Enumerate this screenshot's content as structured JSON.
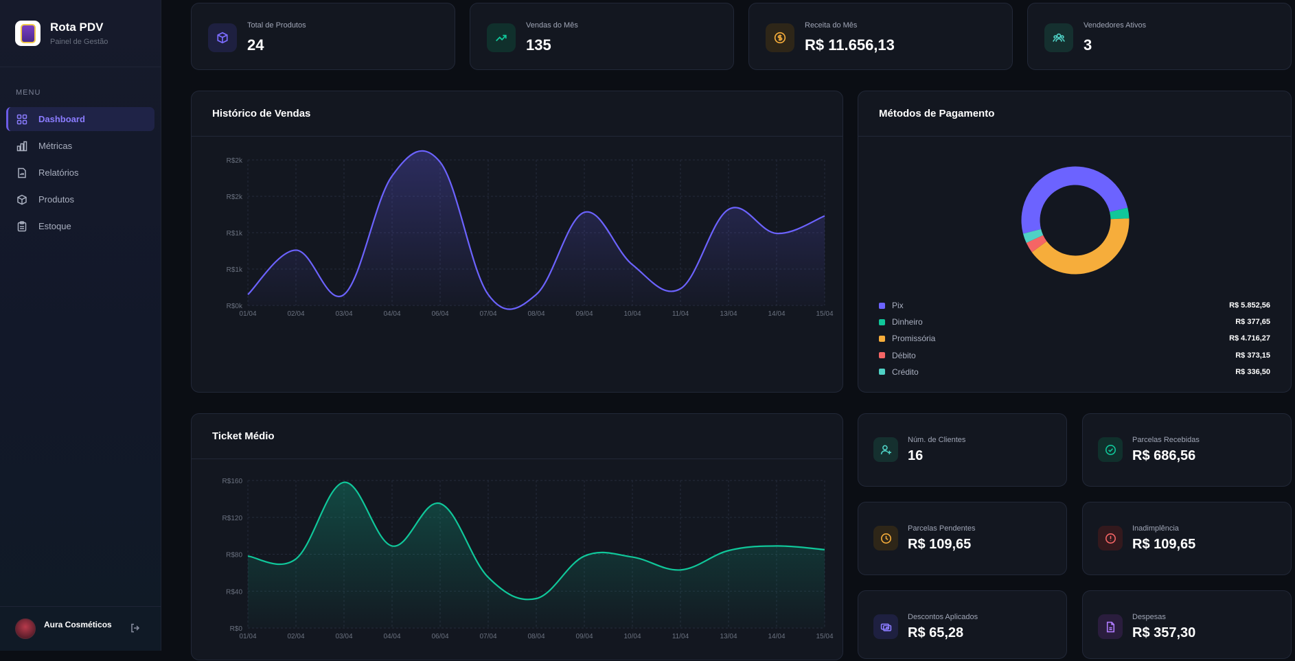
{
  "brand": {
    "title": "Rota PDV",
    "subtitle": "Painel de Gestão"
  },
  "menu_label": "MENU",
  "nav": [
    {
      "label": "Dashboard",
      "icon": "grid-icon",
      "active": true
    },
    {
      "label": "Métricas",
      "icon": "bar-chart-icon",
      "active": false
    },
    {
      "label": "Relatórios",
      "icon": "report-icon",
      "active": false
    },
    {
      "label": "Produtos",
      "icon": "box-icon",
      "active": false
    },
    {
      "label": "Estoque",
      "icon": "clipboard-icon",
      "active": false
    }
  ],
  "user": {
    "name": "Aura Cosméticos"
  },
  "stats": [
    {
      "label": "Total de Produtos",
      "value": "24",
      "icon": "box-icon",
      "color": "#6c5ce7"
    },
    {
      "label": "Vendas do Mês",
      "value": "135",
      "icon": "trending-up-icon",
      "color": "#10c79a"
    },
    {
      "label": "Receita do Mês",
      "value": "R$ 11.656,13",
      "icon": "dollar-icon",
      "color": "#f6ad3b"
    },
    {
      "label": "Vendedores Ativos",
      "value": "3",
      "icon": "users-icon",
      "color": "#4fd1c5"
    }
  ],
  "sales_history": {
    "title": "Histórico de Vendas"
  },
  "ticket": {
    "title": "Ticket Médio"
  },
  "payments": {
    "title": "Métodos de Pagamento"
  },
  "chart_data": [
    {
      "type": "area",
      "title": "Histórico de Vendas",
      "x": [
        "01/04",
        "02/04",
        "03/04",
        "04/04",
        "06/04",
        "07/04",
        "08/04",
        "09/04",
        "10/04",
        "11/04",
        "13/04",
        "14/04",
        "15/04"
      ],
      "y_ticks": [
        "R$0k",
        "R$1k",
        "R$1k",
        "R$2k",
        "R$2k"
      ],
      "ylim": [
        0,
        2000
      ],
      "values": [
        150,
        760,
        150,
        1780,
        1970,
        150,
        150,
        1280,
        560,
        230,
        1320,
        990,
        1230
      ],
      "color": "#6c63ff",
      "grid": true
    },
    {
      "type": "area",
      "title": "Ticket Médio",
      "x": [
        "01/04",
        "02/04",
        "03/04",
        "04/04",
        "06/04",
        "07/04",
        "08/04",
        "09/04",
        "10/04",
        "11/04",
        "13/04",
        "14/04",
        "15/04"
      ],
      "y_ticks": [
        "R$0",
        "R$40",
        "R$80",
        "R$120",
        "R$160"
      ],
      "ylim": [
        0,
        160
      ],
      "values": [
        78,
        75,
        158,
        89,
        135,
        55,
        32,
        78,
        77,
        63,
        84,
        89,
        85
      ],
      "color": "#10c79a",
      "grid": true
    },
    {
      "type": "pie",
      "title": "Métodos de Pagamento",
      "donut": true,
      "labels": [
        "Pix",
        "Dinheiro",
        "Promissória",
        "Débito",
        "Crédito"
      ],
      "values": [
        5852.56,
        377.65,
        4716.27,
        373.15,
        336.5
      ],
      "display_values": [
        "R$ 5.852,56",
        "R$ 377,65",
        "R$ 4.716,27",
        "R$ 373,15",
        "R$ 336,50"
      ],
      "colors": [
        "#6c63ff",
        "#10c79a",
        "#f6ad3b",
        "#f56565",
        "#4fd1c5"
      ]
    }
  ],
  "mini_stats": [
    {
      "label": "Núm. de Clientes",
      "value": "16",
      "icon": "user-plus-icon",
      "color": "#4fd1c5"
    },
    {
      "label": "Parcelas Recebidas",
      "value": "R$ 686,56",
      "icon": "check-circle-icon",
      "color": "#10c79a"
    },
    {
      "label": "Parcelas Pendentes",
      "value": "R$ 109,65",
      "icon": "clock-icon",
      "color": "#f6ad3b"
    },
    {
      "label": "Inadimplência",
      "value": "R$ 109,65",
      "icon": "alert-circle-icon",
      "color": "#f56565"
    },
    {
      "label": "Descontos Aplicados",
      "value": "R$ 65,28",
      "icon": "coupon-icon",
      "color": "#8b7cff"
    },
    {
      "label": "Despesas",
      "value": "R$ 357,30",
      "icon": "file-icon",
      "color": "#b07cff"
    }
  ]
}
